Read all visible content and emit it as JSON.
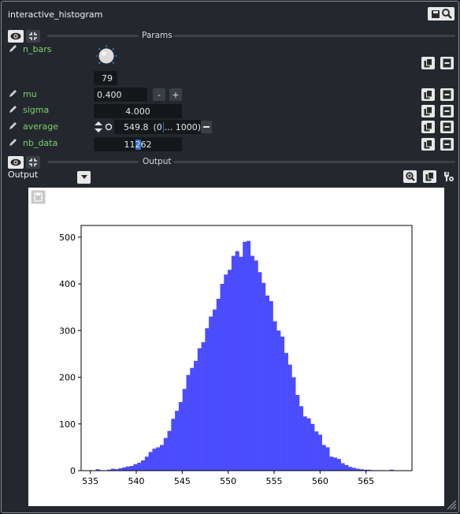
{
  "window": {
    "title": "interactive_histogram"
  },
  "sections": {
    "params_label": "Params",
    "output_label": "Output"
  },
  "params": {
    "n_bars": {
      "label": "n_bars",
      "value": "79"
    },
    "mu": {
      "label": "mu",
      "value": "0.400",
      "dec_label": "-",
      "inc_label": "+"
    },
    "sigma": {
      "label": "sigma",
      "value": "4.000"
    },
    "average": {
      "label": "average",
      "value": "549.8",
      "range_min": "(0",
      "range_max": "... 1000)"
    },
    "nb_data": {
      "label": "nb_data",
      "value_pre": "11",
      "value_sel": "2",
      "value_post": "62"
    }
  },
  "output": {
    "dropdown_label": "Output"
  },
  "colors": {
    "accent_green": "#7bd16a",
    "bar_fill": "#4c4cff",
    "selection": "#2a6fd6"
  },
  "icons": [
    "eye-icon",
    "collapse-icon",
    "pencil-icon",
    "dial-icon",
    "copy-icon",
    "minus-icon",
    "zoom-icon",
    "tool-icon",
    "save-icon",
    "chevron-down-icon",
    "toggle-icon",
    "resize-grip-icon"
  ],
  "chart_data": {
    "type": "bar",
    "title": "",
    "xlabel": "",
    "ylabel": "",
    "xlim": [
      534,
      570
    ],
    "ylim": [
      0,
      525
    ],
    "xticks": [
      535,
      540,
      545,
      550,
      555,
      560,
      565
    ],
    "yticks": [
      0,
      100,
      200,
      300,
      400,
      500
    ],
    "bin_start": 535.6,
    "bin_width": 0.41,
    "values": [
      3,
      1,
      0,
      2,
      4,
      3,
      5,
      7,
      9,
      10,
      14,
      17,
      22,
      30,
      40,
      47,
      50,
      55,
      70,
      85,
      111,
      128,
      147,
      175,
      205,
      220,
      235,
      262,
      275,
      305,
      330,
      345,
      368,
      400,
      420,
      430,
      460,
      470,
      458,
      490,
      492,
      460,
      450,
      425,
      402,
      375,
      363,
      320,
      300,
      287,
      252,
      227,
      200,
      162,
      138,
      116,
      112,
      100,
      84,
      77,
      55,
      50,
      30,
      28,
      25,
      16,
      12,
      8,
      6,
      4,
      3,
      2,
      2,
      1,
      1,
      1,
      0,
      0,
      2
    ]
  }
}
